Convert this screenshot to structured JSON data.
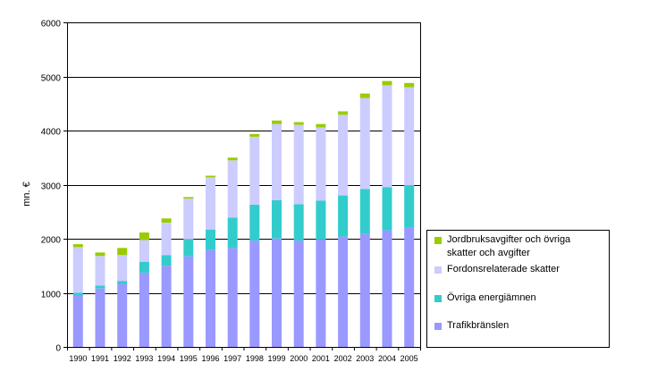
{
  "chart_data": {
    "type": "bar",
    "stacked": true,
    "title": "",
    "xlabel": "",
    "ylabel": "mn. €",
    "ylim": [
      0,
      6000
    ],
    "yticks": [
      "0",
      "1000",
      "2000",
      "3000",
      "4000",
      "5000",
      "6000"
    ],
    "grid": true,
    "legend_position": "right",
    "categories": [
      "1990",
      "1991",
      "1992",
      "1993",
      "1994",
      "1995",
      "1996",
      "1997",
      "1998",
      "1999",
      "2000",
      "2001",
      "2002",
      "2003",
      "2004",
      "2005"
    ],
    "series": [
      {
        "name": "Trafikbränslen",
        "color": "#9999FF",
        "values": [
          950,
          1080,
          1165,
          1370,
          1500,
          1675,
          1795,
          1830,
          1965,
          2005,
          1965,
          1985,
          2040,
          2090,
          2155,
          2205
        ]
      },
      {
        "name": "Övriga energiämnen",
        "color": "#33CCCC",
        "values": [
          50,
          55,
          55,
          200,
          195,
          315,
          375,
          560,
          665,
          705,
          675,
          720,
          760,
          830,
          795,
          780
        ]
      },
      {
        "name": "Fordonsrelaterade skatter",
        "color": "#CCCCFF",
        "values": [
          845,
          545,
          480,
          405,
          600,
          750,
          965,
          1060,
          1255,
          1410,
          1465,
          1350,
          1490,
          1680,
          1885,
          1815
        ]
      },
      {
        "name": "Jordbruksavgifter och övriga skatter och avgifter",
        "color": "#99CC00",
        "values": [
          55,
          65,
          130,
          140,
          80,
          30,
          30,
          50,
          50,
          65,
          50,
          65,
          65,
          85,
          80,
          80
        ]
      }
    ]
  },
  "legend": {
    "items": [
      {
        "line1": "Jordbruksavgifter och övriga",
        "line2": "skatter och avgifter",
        "color": "#99CC00"
      },
      {
        "line1": "Fordonsrelaterade skatter",
        "color": "#CCCCFF"
      },
      {
        "line1": "Övriga energiämnen",
        "color": "#33CCCC"
      },
      {
        "line1": "Trafikbränslen",
        "color": "#9999FF"
      }
    ]
  }
}
